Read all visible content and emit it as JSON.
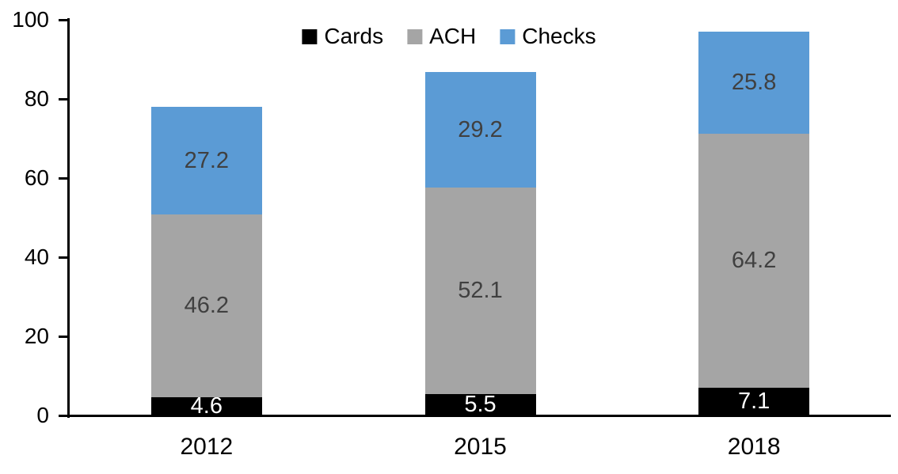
{
  "chart_data": {
    "type": "bar",
    "stacked": true,
    "title": "",
    "xlabel": "",
    "ylabel": "",
    "categories": [
      "2012",
      "2015",
      "2018"
    ],
    "series": [
      {
        "name": "Cards",
        "color": "#000000",
        "label_color": "#FFFFFF",
        "values": [
          4.6,
          5.5,
          7.1
        ]
      },
      {
        "name": "ACH",
        "color": "#A5A5A5",
        "label_color": "#404040",
        "values": [
          46.2,
          52.1,
          64.2
        ]
      },
      {
        "name": "Checks",
        "color": "#5B9BD5",
        "label_color": "#404040",
        "values": [
          27.2,
          29.2,
          25.8
        ]
      }
    ],
    "totals": [
      78.0,
      86.8,
      97.1
    ],
    "ylim": [
      0,
      100
    ],
    "yticks": [
      0,
      20,
      40,
      60,
      80,
      100
    ],
    "y_tick_labels": [
      "0",
      "20",
      "40",
      "60",
      "80",
      "100"
    ],
    "grid": false,
    "data_labels": true,
    "legend_position": "top-center",
    "legend_entries": [
      "Cards",
      "ACH",
      "Checks"
    ],
    "axis_color": "#000000",
    "background_color": "#FFFFFF"
  }
}
